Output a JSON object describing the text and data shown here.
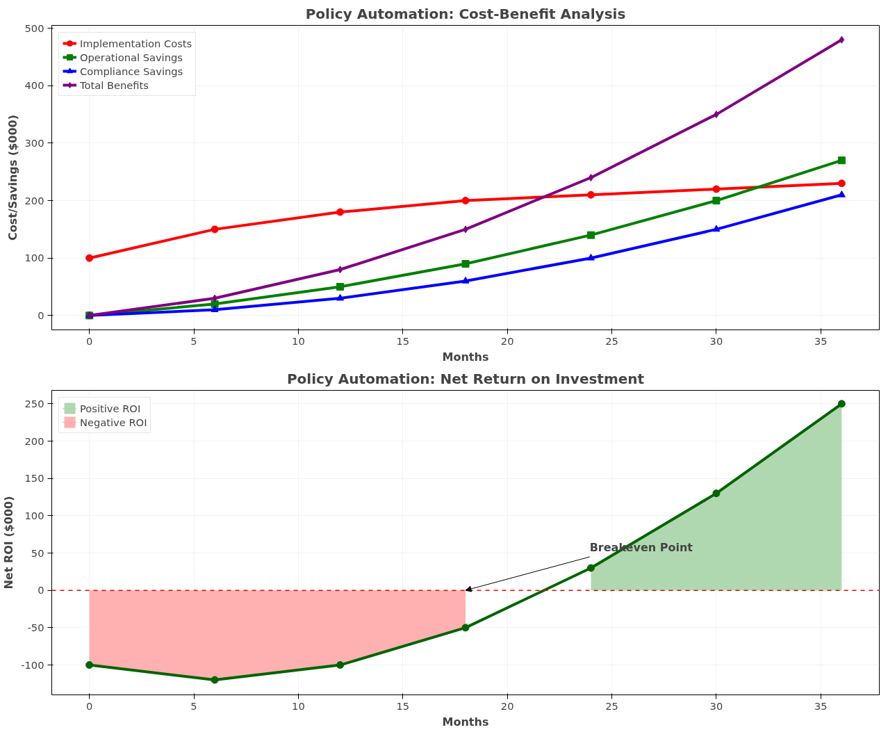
{
  "chart_data": [
    {
      "type": "line",
      "title": "Policy Automation: Cost-Benefit Analysis",
      "xlabel": "Months",
      "ylabel": "Cost/Savings ($000)",
      "x": [
        0,
        6,
        12,
        18,
        24,
        30,
        36
      ],
      "xlim": [
        -1.8,
        37.8
      ],
      "xticks": [
        0,
        5,
        10,
        15,
        20,
        25,
        30,
        35
      ],
      "ylim": [
        -25,
        505
      ],
      "yticks": [
        0,
        100,
        200,
        300,
        400,
        500
      ],
      "grid": true,
      "legend": "top left",
      "series": [
        {
          "name": "Implementation Costs",
          "color": "#ff0000",
          "marker": "circle",
          "values": [
            100,
            150,
            180,
            200,
            210,
            220,
            230
          ]
        },
        {
          "name": "Operational Savings",
          "color": "#008000",
          "marker": "square",
          "values": [
            0,
            20,
            50,
            90,
            140,
            200,
            270
          ]
        },
        {
          "name": "Compliance Savings",
          "color": "#0000ff",
          "marker": "triangle",
          "values": [
            0,
            10,
            30,
            60,
            100,
            150,
            210
          ]
        },
        {
          "name": "Total Benefits",
          "color": "#800080",
          "marker": "diamond",
          "values": [
            0,
            30,
            80,
            150,
            240,
            350,
            480
          ]
        }
      ]
    },
    {
      "type": "line",
      "title": "Policy Automation: Net Return on Investment",
      "xlabel": "Months",
      "ylabel": "Net ROI ($000)",
      "xlim": [
        -1.8,
        37.8
      ],
      "xticks": [
        0,
        5,
        10,
        15,
        20,
        25,
        30,
        35
      ],
      "ylim": [
        -140,
        268
      ],
      "yticks": [
        -100,
        -50,
        0,
        50,
        100,
        150,
        200,
        250
      ],
      "grid": true,
      "legend": "top left",
      "ref_lines": [
        {
          "axis": "y",
          "value": 0,
          "color": "#ff0000",
          "line_style": "dashed"
        }
      ],
      "annotations": [
        {
          "text": "Breakeven Point",
          "x": 18,
          "y": 0
        }
      ],
      "series": [
        {
          "name": "Positive ROI",
          "type": "area",
          "color": "#b0d8b0",
          "x": [
            24,
            30,
            36
          ],
          "values": [
            30,
            130,
            250
          ]
        },
        {
          "name": "Negative ROI",
          "type": "area",
          "color": "#ffb0b0",
          "x": [
            0,
            6,
            12,
            18
          ],
          "values": [
            -100,
            -120,
            -100,
            -50
          ]
        },
        {
          "type": "line",
          "color": "#006400",
          "marker": "circle",
          "x": [
            0,
            6,
            12,
            18,
            24,
            30,
            36
          ],
          "values": [
            -100,
            -120,
            -100,
            -50,
            30,
            130,
            250
          ]
        }
      ]
    }
  ]
}
